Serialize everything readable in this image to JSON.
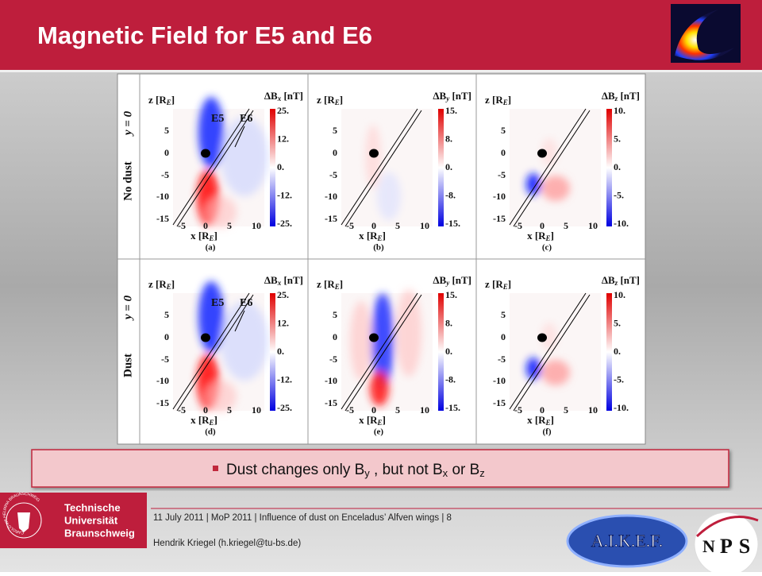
{
  "header": {
    "title": "Magnetic Field for E5 and E6"
  },
  "figure": {
    "rows": [
      {
        "label": "No dust",
        "cut": "y = 0"
      },
      {
        "label": "Dust",
        "cut": "y = 0"
      }
    ],
    "z_label": {
      "text": "z [R",
      "sub": "E",
      "end": "]"
    },
    "x_label": {
      "text": "x [R",
      "sub": "E",
      "end": "]"
    },
    "z_ticks": [
      "5",
      "0",
      "-5",
      "-10",
      "-15"
    ],
    "x_ticks": [
      "-5",
      "0",
      "5",
      "10"
    ],
    "panels": [
      {
        "letter": "(a)",
        "cbar_title": {
          "main": "ΔB",
          "sub": "x",
          "unit": " [nT]"
        },
        "cbar_ticks": [
          "25.",
          "12.",
          "0.",
          "-12.",
          "-25."
        ],
        "markers": [
          "E5",
          "E6"
        ]
      },
      {
        "letter": "(b)",
        "cbar_title": {
          "main": "ΔB",
          "sub": "y",
          "unit": " [nT]"
        },
        "cbar_ticks": [
          "15.",
          "8.",
          "0.",
          "-8.",
          "-15."
        ]
      },
      {
        "letter": "(c)",
        "cbar_title": {
          "main": "ΔB",
          "sub": "z",
          "unit": " [nT]"
        },
        "cbar_ticks": [
          "10.",
          "5.",
          "0.",
          "-5.",
          "-10."
        ]
      },
      {
        "letter": "(d)",
        "cbar_title": {
          "main": "ΔB",
          "sub": "x",
          "unit": " [nT]"
        },
        "cbar_ticks": [
          "25.",
          "12.",
          "0.",
          "-12.",
          "-25."
        ],
        "markers": [
          "E5",
          "E6"
        ]
      },
      {
        "letter": "(e)",
        "cbar_title": {
          "main": "ΔB",
          "sub": "y",
          "unit": " [nT]"
        },
        "cbar_ticks": [
          "15.",
          "8.",
          "0.",
          "-8.",
          "-15."
        ]
      },
      {
        "letter": "(f)",
        "cbar_title": {
          "main": "ΔB",
          "sub": "z",
          "unit": " [nT]"
        },
        "cbar_ticks": [
          "10.",
          "5.",
          "0.",
          "-5.",
          "-10."
        ]
      }
    ]
  },
  "callout": {
    "segments": [
      "Dust changes only B",
      "y",
      " , but not B",
      "x",
      " or B",
      "z"
    ]
  },
  "footer": {
    "logo": {
      "lines": [
        "Technische",
        "Universität",
        "Braunschweig"
      ],
      "seal": "CAROLO-WILHELMINA BRAUNSCHWEIG"
    },
    "info": "11 July 2011 | MoP 2011 | Influence of dust on Enceladus’ Alfven wings | 8",
    "author": "Hendrik Kriegel (h.kriegel@tu-bs.de)",
    "partner_logos": [
      "A.I.K.E.F.",
      "N",
      "P",
      "S"
    ]
  }
}
